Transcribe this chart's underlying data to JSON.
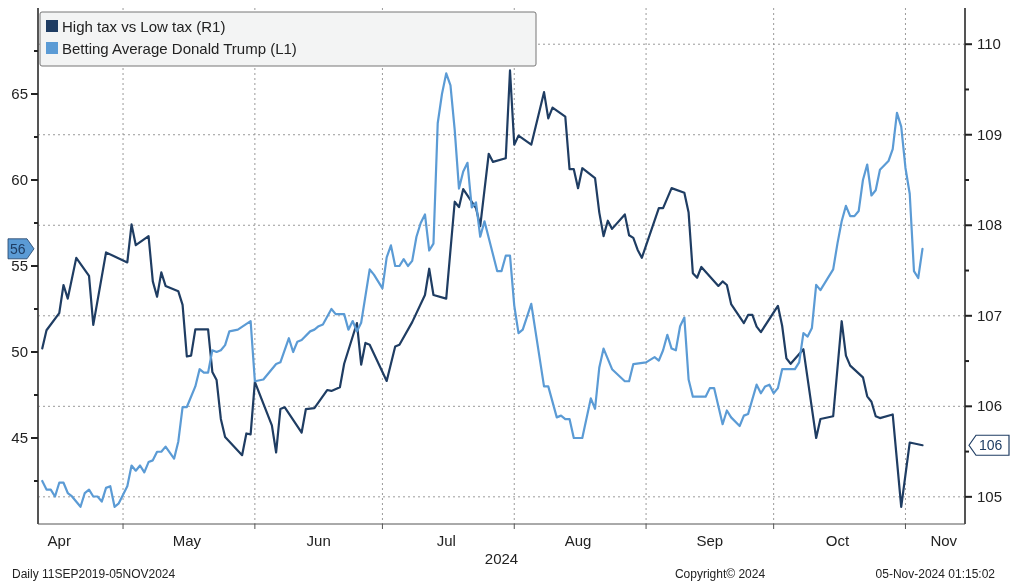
{
  "chart_data": {
    "type": "line",
    "xlabel": "2024",
    "legend": "top left",
    "grid": true,
    "line_style": "solid",
    "marker": "none",
    "xlim": [
      "2024-04-11",
      "2024-11-15"
    ],
    "xticks": [
      {
        "value": "2024-04-16",
        "label": "Apr"
      },
      {
        "value": "2024-05-01",
        "label": null
      },
      {
        "value": "2024-05-16",
        "label": "May"
      },
      {
        "value": "2024-06-01",
        "label": null
      },
      {
        "value": "2024-06-16",
        "label": "Jun"
      },
      {
        "value": "2024-07-01",
        "label": null
      },
      {
        "value": "2024-07-16",
        "label": "Jul"
      },
      {
        "value": "2024-08-01",
        "label": null
      },
      {
        "value": "2024-08-16",
        "label": "Aug"
      },
      {
        "value": "2024-09-01",
        "label": null
      },
      {
        "value": "2024-09-16",
        "label": "Sep"
      },
      {
        "value": "2024-10-01",
        "label": null
      },
      {
        "value": "2024-10-16",
        "label": "Oct"
      },
      {
        "value": "2024-11-01",
        "label": null
      },
      {
        "value": "2024-11-10",
        "label": "Nov"
      }
    ],
    "ylim": [
      40,
      70
    ],
    "yticks": [
      {
        "value": 42.5,
        "label": null
      },
      45,
      {
        "value": 47.5,
        "label": null
      },
      50,
      {
        "value": 52.5,
        "label": null
      },
      55,
      {
        "value": 57.5,
        "label": null
      },
      60,
      {
        "value": 62.5,
        "label": null
      },
      65,
      {
        "value": 67.5,
        "label": null
      }
    ],
    "y2lim": [
      104.7,
      110.4
    ],
    "y2ticks": [
      105,
      {
        "value": 105.5,
        "label": null
      },
      106,
      {
        "value": 106.5,
        "label": null
      },
      107,
      {
        "value": 107.5,
        "label": null
      },
      108,
      {
        "value": 108.5,
        "label": null
      },
      109,
      {
        "value": 109.5,
        "label": null
      },
      110
    ],
    "annotations": [
      "106",
      "56",
      "Daily 11SEP2019-05NOV2024",
      "Copyright© 2024",
      "05-Nov-2024 01:15:02"
    ],
    "series": [
      {
        "name": "High tax vs Low tax (R1)",
        "color": "#1f3d63",
        "axis": "y2",
        "x": [
          "2024-04-12",
          "2024-04-13",
          "2024-04-16",
          "2024-04-17",
          "2024-04-18",
          "2024-04-20",
          "2024-04-23",
          "2024-04-24",
          "2024-04-27",
          "2024-05-02",
          "2024-05-03",
          "2024-05-04",
          "2024-05-07",
          "2024-05-08",
          "2024-05-09",
          "2024-05-10",
          "2024-05-11",
          "2024-05-14",
          "2024-05-15",
          "2024-05-16",
          "2024-05-17",
          "2024-05-18",
          "2024-05-21",
          "2024-05-22",
          "2024-05-23",
          "2024-05-24",
          "2024-05-25",
          "2024-05-29",
          "2024-05-30",
          "2024-05-31",
          "2024-06-01",
          "2024-06-05",
          "2024-06-06",
          "2024-06-07",
          "2024-06-08",
          "2024-06-12",
          "2024-06-13",
          "2024-06-15",
          "2024-06-18",
          "2024-06-19",
          "2024-06-21",
          "2024-06-22",
          "2024-06-25",
          "2024-06-26",
          "2024-06-27",
          "2024-06-28",
          "2024-07-02",
          "2024-07-04",
          "2024-07-05",
          "2024-07-08",
          "2024-07-11",
          "2024-07-12",
          "2024-07-13",
          "2024-07-16",
          "2024-07-18",
          "2024-07-19",
          "2024-07-20",
          "2024-07-23",
          "2024-07-24",
          "2024-07-26",
          "2024-07-27",
          "2024-07-30",
          "2024-07-31",
          "2024-08-01",
          "2024-08-02",
          "2024-08-05",
          "2024-08-08",
          "2024-08-09",
          "2024-08-10",
          "2024-08-13",
          "2024-08-14",
          "2024-08-15",
          "2024-08-16",
          "2024-08-17",
          "2024-08-20",
          "2024-08-21",
          "2024-08-22",
          "2024-08-23",
          "2024-08-24",
          "2024-08-27",
          "2024-08-28",
          "2024-08-29",
          "2024-08-30",
          "2024-08-31",
          "2024-09-04",
          "2024-09-05",
          "2024-09-07",
          "2024-09-10",
          "2024-09-11",
          "2024-09-12",
          "2024-09-13",
          "2024-09-14",
          "2024-09-18",
          "2024-09-19",
          "2024-09-20",
          "2024-09-21",
          "2024-09-24",
          "2024-09-25",
          "2024-09-26",
          "2024-09-27",
          "2024-09-28",
          "2024-10-02",
          "2024-10-03",
          "2024-10-04",
          "2024-10-05",
          "2024-10-08",
          "2024-10-11",
          "2024-10-12",
          "2024-10-15",
          "2024-10-17",
          "2024-10-18",
          "2024-10-19",
          "2024-10-22",
          "2024-10-23",
          "2024-10-24",
          "2024-10-25",
          "2024-10-26",
          "2024-10-29",
          "2024-10-31",
          "2024-11-02",
          "2024-11-05"
        ],
        "values": [
          106.64,
          106.84,
          107.03,
          107.34,
          107.19,
          107.64,
          107.44,
          106.9,
          107.7,
          107.59,
          108.01,
          107.78,
          107.88,
          107.38,
          107.21,
          107.48,
          107.33,
          107.27,
          107.12,
          106.55,
          106.56,
          106.85,
          106.85,
          106.38,
          106.29,
          105.86,
          105.66,
          105.46,
          105.7,
          105.69,
          106.27,
          105.79,
          105.49,
          105.97,
          105.99,
          105.71,
          105.97,
          105.98,
          106.18,
          106.17,
          106.21,
          106.47,
          106.92,
          106.46,
          106.7,
          106.68,
          106.28,
          106.66,
          106.68,
          106.93,
          107.23,
          107.52,
          107.23,
          107.19,
          108.26,
          108.2,
          108.4,
          108.19,
          107.99,
          108.79,
          108.7,
          108.74,
          109.71,
          108.89,
          108.99,
          108.89,
          109.47,
          109.18,
          109.3,
          109.2,
          108.62,
          108.62,
          108.41,
          108.63,
          108.52,
          108.14,
          107.88,
          108.05,
          107.96,
          108.12,
          107.89,
          107.86,
          107.73,
          107.64,
          108.19,
          108.19,
          108.41,
          108.36,
          108.14,
          107.47,
          107.42,
          107.54,
          107.33,
          107.38,
          107.34,
          107.13,
          106.92,
          107.01,
          107.01,
          106.88,
          106.82,
          107.11,
          106.89,
          106.53,
          106.47,
          106.63,
          105.65,
          105.86,
          105.89,
          106.94,
          106.56,
          106.45,
          106.32,
          106.11,
          106.05,
          105.89,
          105.87,
          105.91,
          104.89,
          105.6,
          105.57
        ]
      },
      {
        "name": "Betting Average Donald Trump (L1)",
        "color": "#5b9bd5",
        "axis": "y",
        "x": [
          "2024-04-12",
          "2024-04-13",
          "2024-04-14",
          "2024-04-15",
          "2024-04-16",
          "2024-04-17",
          "2024-04-18",
          "2024-04-19",
          "2024-04-21",
          "2024-04-22",
          "2024-04-23",
          "2024-04-24",
          "2024-04-25",
          "2024-04-26",
          "2024-04-27",
          "2024-04-28",
          "2024-04-29",
          "2024-04-30",
          "2024-05-02",
          "2024-05-03",
          "2024-05-04",
          "2024-05-05",
          "2024-05-06",
          "2024-05-07",
          "2024-05-08",
          "2024-05-09",
          "2024-05-10",
          "2024-05-11",
          "2024-05-13",
          "2024-05-14",
          "2024-05-15",
          "2024-05-16",
          "2024-05-18",
          "2024-05-19",
          "2024-05-20",
          "2024-05-21",
          "2024-05-22",
          "2024-05-23",
          "2024-05-24",
          "2024-05-25",
          "2024-05-26",
          "2024-05-28",
          "2024-05-31",
          "2024-06-01",
          "2024-06-03",
          "2024-06-06",
          "2024-06-07",
          "2024-06-09",
          "2024-06-10",
          "2024-06-11",
          "2024-06-12",
          "2024-06-14",
          "2024-06-15",
          "2024-06-16",
          "2024-06-17",
          "2024-06-19",
          "2024-06-20",
          "2024-06-22",
          "2024-06-23",
          "2024-06-24",
          "2024-06-25",
          "2024-06-26",
          "2024-06-28",
          "2024-06-29",
          "2024-07-01",
          "2024-07-02",
          "2024-07-03",
          "2024-07-04",
          "2024-07-05",
          "2024-07-06",
          "2024-07-07",
          "2024-07-08",
          "2024-07-09",
          "2024-07-10",
          "2024-07-11",
          "2024-07-12",
          "2024-07-13",
          "2024-07-14",
          "2024-07-15",
          "2024-07-16",
          "2024-07-17",
          "2024-07-18",
          "2024-07-19",
          "2024-07-20",
          "2024-07-21",
          "2024-07-22",
          "2024-07-23",
          "2024-07-24",
          "2024-07-25",
          "2024-07-28",
          "2024-07-29",
          "2024-07-30",
          "2024-07-31",
          "2024-08-01",
          "2024-08-02",
          "2024-08-03",
          "2024-08-05",
          "2024-08-08",
          "2024-08-09",
          "2024-08-11",
          "2024-08-12",
          "2024-08-13",
          "2024-08-14",
          "2024-08-15",
          "2024-08-17",
          "2024-08-19",
          "2024-08-20",
          "2024-08-21",
          "2024-08-22",
          "2024-08-24",
          "2024-08-27",
          "2024-08-28",
          "2024-08-29",
          "2024-09-01",
          "2024-09-03",
          "2024-09-04",
          "2024-09-05",
          "2024-09-06",
          "2024-09-07",
          "2024-09-08",
          "2024-09-09",
          "2024-09-10",
          "2024-09-11",
          "2024-09-12",
          "2024-09-15",
          "2024-09-16",
          "2024-09-17",
          "2024-09-19",
          "2024-09-20",
          "2024-09-21",
          "2024-09-23",
          "2024-09-24",
          "2024-09-25",
          "2024-09-27",
          "2024-09-28",
          "2024-09-29",
          "2024-09-30",
          "2024-10-01",
          "2024-10-02",
          "2024-10-03",
          "2024-10-06",
          "2024-10-07",
          "2024-10-08",
          "2024-10-09",
          "2024-10-10",
          "2024-10-11",
          "2024-10-12",
          "2024-10-15",
          "2024-10-16",
          "2024-10-17",
          "2024-10-18",
          "2024-10-19",
          "2024-10-20",
          "2024-10-21",
          "2024-10-22",
          "2024-10-23",
          "2024-10-24",
          "2024-10-25",
          "2024-10-26",
          "2024-10-28",
          "2024-10-29",
          "2024-10-30",
          "2024-10-31",
          "2024-11-01",
          "2024-11-02",
          "2024-11-03",
          "2024-11-04",
          "2024-11-05"
        ],
        "values": [
          42.5,
          42,
          42,
          41.6,
          42.4,
          42.4,
          41.8,
          41.6,
          41,
          41.8,
          42,
          41.6,
          41.6,
          41.3,
          42.1,
          42.2,
          41,
          41.2,
          42.2,
          43.4,
          43.1,
          43.4,
          43,
          43.6,
          43.7,
          44.2,
          44.2,
          44.5,
          43.8,
          44.8,
          46.8,
          46.8,
          48,
          49,
          48.8,
          48.8,
          50.1,
          50,
          50.1,
          50.4,
          51.2,
          51.3,
          51.8,
          48.3,
          48.4,
          49.3,
          49.4,
          50.8,
          50,
          50.6,
          50.7,
          51.2,
          51.3,
          51.5,
          51.6,
          52.5,
          52.2,
          52.2,
          51.3,
          51.8,
          51.2,
          51.7,
          54.8,
          54.5,
          53.7,
          55.5,
          56.2,
          55,
          55,
          55.4,
          55,
          55.3,
          56.7,
          57.5,
          58,
          55.9,
          56.3,
          63.3,
          65,
          66.2,
          65.5,
          62.9,
          59.5,
          60.5,
          61,
          58.4,
          58.7,
          56.7,
          57.6,
          54.7,
          54.7,
          55.6,
          55.6,
          52.7,
          51.1,
          51.3,
          52.8,
          48,
          48,
          46.2,
          46.3,
          46.1,
          46.1,
          45,
          45,
          47.3,
          46.7,
          49.1,
          50.2,
          49,
          48.3,
          48.3,
          49.3,
          49.4,
          49.7,
          49.5,
          50.1,
          51,
          50.2,
          50.1,
          51.5,
          52,
          48.4,
          47.4,
          47.4,
          47.9,
          47.9,
          45.8,
          46.6,
          46.2,
          45.7,
          46.3,
          46.4,
          48.1,
          47.6,
          48,
          48.1,
          47.6,
          47.9,
          49,
          49,
          49.4,
          51.1,
          50.9,
          51.4,
          53.9,
          53.6,
          54.8,
          56.3,
          57.6,
          58.5,
          57.9,
          57.9,
          58.2,
          60,
          60.9,
          59.1,
          59.4,
          60.6,
          61.1,
          61.8,
          63.9,
          63.1,
          60.7,
          59.2,
          54.7,
          54.3,
          56
        ]
      }
    ]
  }
}
